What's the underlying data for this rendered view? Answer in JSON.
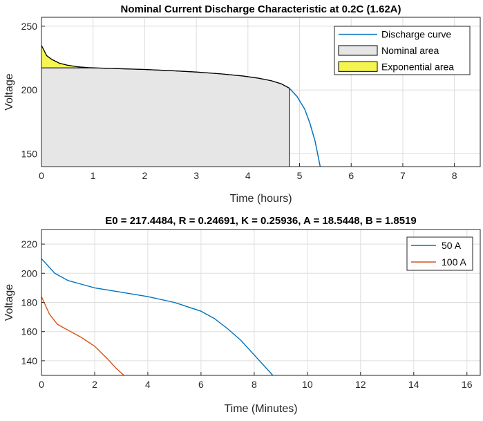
{
  "chart_data": [
    {
      "type": "area",
      "title": "Nominal Current Discharge Characteristic at 0.2C (1.62A)",
      "xlabel": "Time (hours)",
      "ylabel": "Voltage",
      "xlim": [
        0,
        8.5
      ],
      "ylim": [
        140,
        257
      ],
      "xticks": [
        "0",
        "1",
        "2",
        "3",
        "4",
        "5",
        "6",
        "7",
        "8"
      ],
      "yticks": [
        "150",
        "200",
        "250"
      ],
      "grid": true,
      "legend_position": "top-right",
      "series": [
        {
          "name": "Discharge curve",
          "color": "#0072bd",
          "x": [
            0,
            0.1,
            0.2,
            0.35,
            0.5,
            0.7,
            0.9,
            1.2,
            1.6,
            2.0,
            2.5,
            3.0,
            3.5,
            3.9,
            4.2,
            4.45,
            4.65,
            4.8,
            4.95,
            5.1,
            5.2,
            5.3,
            5.35,
            5.4
          ],
          "y": [
            235,
            227,
            224,
            221,
            219.5,
            218.2,
            217.6,
            217.1,
            216.6,
            216.1,
            215.2,
            214.1,
            212.6,
            211,
            209.3,
            207.3,
            204.8,
            201.5,
            195,
            185,
            174,
            160,
            150,
            140
          ]
        },
        {
          "name": "Nominal area",
          "color": "#e6e6e6",
          "x": [
            0,
            0.5,
            0.9,
            1.2,
            1.6,
            2.0,
            2.5,
            3.0,
            3.5,
            3.9,
            4.2,
            4.45,
            4.65,
            4.8
          ],
          "y": [
            217.4,
            217.4,
            217.3,
            217.1,
            216.6,
            216.1,
            215.2,
            214.1,
            212.6,
            211,
            209.3,
            207.3,
            204.8,
            201.5
          ]
        },
        {
          "name": "Exponential area",
          "color": "#f5f552",
          "x": [
            0,
            0.1,
            0.2,
            0.35,
            0.5,
            0.7,
            0.9
          ],
          "y": [
            235,
            227,
            224,
            221,
            219.5,
            218.2,
            217.6
          ]
        }
      ]
    },
    {
      "type": "line",
      "title": "E0 = 217.4484, R = 0.24691, K = 0.25936, A = 18.5448, B = 1.8519",
      "xlabel": "Time (Minutes)",
      "ylabel": "Voltage",
      "xlim": [
        0,
        16.5
      ],
      "ylim": [
        130,
        230
      ],
      "xticks": [
        "0",
        "2",
        "4",
        "6",
        "8",
        "10",
        "12",
        "14",
        "16"
      ],
      "yticks": [
        "140",
        "160",
        "180",
        "200",
        "220"
      ],
      "grid": true,
      "legend_position": "top-right",
      "series": [
        {
          "name": "50 A",
          "color": "#0072bd",
          "x": [
            0,
            0.2,
            0.5,
            1.0,
            1.5,
            2,
            3,
            4,
            5,
            6,
            6.5,
            7,
            7.5,
            8,
            8.3,
            8.6,
            8.75
          ],
          "y": [
            210,
            206,
            200,
            195,
            192.5,
            190,
            187,
            184,
            180,
            174,
            169,
            162,
            154,
            144,
            138,
            132,
            129
          ]
        },
        {
          "name": "100 A",
          "color": "#d95319",
          "x": [
            0,
            0.1,
            0.3,
            0.6,
            1.0,
            1.5,
            2.0,
            2.5,
            2.8,
            3.1
          ],
          "y": [
            184,
            180,
            172,
            165,
            161,
            156,
            150,
            141,
            135,
            130
          ]
        }
      ]
    }
  ]
}
